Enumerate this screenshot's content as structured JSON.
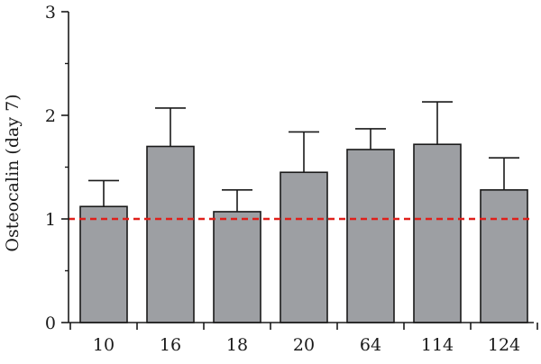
{
  "chart_data": {
    "type": "bar",
    "categories": [
      "10",
      "16",
      "18",
      "20",
      "64",
      "114",
      "124"
    ],
    "values": [
      1.12,
      1.7,
      1.07,
      1.45,
      1.67,
      1.72,
      1.28
    ],
    "error_upper": [
      0.25,
      0.37,
      0.21,
      0.39,
      0.2,
      0.41,
      0.31
    ],
    "reference_line": 1,
    "ylabel": "Osteocalin (day 7)",
    "xlabel": "",
    "title": "",
    "ylim": [
      0,
      3
    ],
    "yticks": [
      0,
      1,
      2,
      3
    ],
    "legend": "none",
    "grid": false,
    "colors": {
      "bar_fill": "#9d9fa3",
      "bar_stroke": "#1a1a1a",
      "axis": "#1a1a1a",
      "reference_line": "#e0201b"
    }
  }
}
